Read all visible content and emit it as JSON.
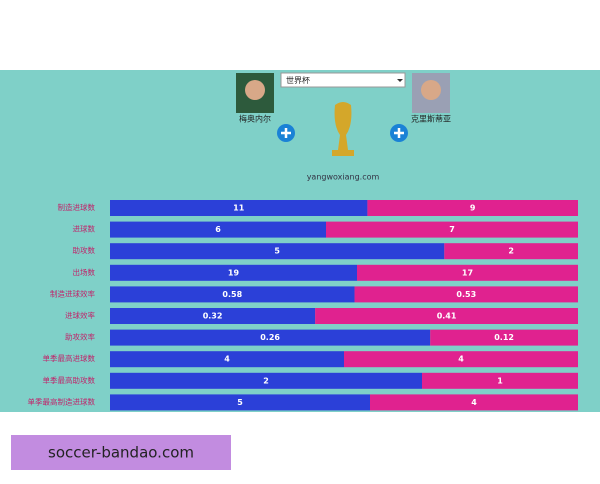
{
  "dropdown": "世界杯",
  "source": "yangwoxiang.com",
  "watermark": "soccer-bandao.com",
  "chart_data": {
    "type": "bar",
    "stacking": "percent",
    "orientation": "horizontal",
    "categories": [
      "制造进球数",
      "进球数",
      "助攻数",
      "出场数",
      "制造进球效率",
      "进球效率",
      "助攻效率",
      "单季最高进球数",
      "单季最高助攻数",
      "单季最高制造进球数"
    ],
    "series": [
      {
        "name": "梅奥内尔",
        "color": "#2b40d8",
        "values": [
          11,
          6,
          5,
          19,
          0.58,
          0.32,
          0.26,
          4,
          2,
          5
        ]
      },
      {
        "name": "克里斯蒂亚",
        "color": "#e0228f",
        "values": [
          9,
          7,
          2,
          17,
          0.53,
          0.41,
          0.12,
          4,
          1,
          4
        ]
      }
    ]
  }
}
